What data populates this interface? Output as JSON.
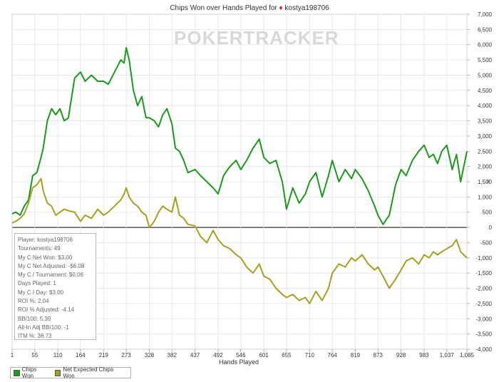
{
  "chart_data": {
    "type": "line",
    "title": "Chips Won over Hands Played for",
    "player_name": "kostya198706",
    "xlabel": "Hands Played",
    "ylabel": "",
    "xlim": [
      1,
      1085
    ],
    "ylim": [
      -4000,
      7000
    ],
    "x_ticks": [
      1,
      55,
      110,
      164,
      219,
      273,
      328,
      382,
      437,
      492,
      546,
      601,
      655,
      710,
      764,
      819,
      873,
      928,
      983,
      1037,
      1085
    ],
    "x_tick_labels": [
      "1",
      "55",
      "110",
      "164",
      "219",
      "273",
      "328",
      "382",
      "437",
      "492",
      "546",
      "601",
      "655",
      "710",
      "764",
      "819",
      "873",
      "928",
      "983",
      "1,037",
      "1,085"
    ],
    "y_ticks": [
      -4000,
      -3500,
      -3000,
      -2500,
      -2000,
      -1500,
      -1000,
      -500,
      0,
      500,
      1000,
      1500,
      2000,
      2500,
      3000,
      3500,
      4000,
      4500,
      5000,
      5500,
      6000,
      6500,
      7000
    ],
    "y_tick_labels": [
      "-4,000",
      "-3,500",
      "-3,000",
      "-2,500",
      "-2,000",
      "-1,500",
      "-1,000",
      "-500",
      "0",
      "500",
      "1,000",
      "1,500",
      "2,000",
      "2,500",
      "3,000",
      "3,500",
      "4,000",
      "4,500",
      "5,000",
      "5,500",
      "6,000",
      "6,500",
      "7,000"
    ],
    "grid": true,
    "legend_position": "bottom-left",
    "series": [
      {
        "name": "Chips Won",
        "color": "#1a9a1a",
        "x": [
          1,
          10,
          20,
          30,
          40,
          50,
          60,
          70,
          75,
          85,
          95,
          105,
          115,
          125,
          135,
          150,
          164,
          175,
          190,
          205,
          219,
          230,
          245,
          260,
          268,
          273,
          280,
          290,
          300,
          310,
          320,
          328,
          340,
          350,
          360,
          370,
          382,
          390,
          400,
          410,
          420,
          437,
          450,
          465,
          480,
          492,
          505,
          520,
          535,
          546,
          560,
          575,
          590,
          601,
          615,
          630,
          645,
          655,
          670,
          685,
          700,
          710,
          725,
          740,
          755,
          764,
          780,
          795,
          810,
          819,
          835,
          850,
          865,
          873,
          885,
          900,
          915,
          928,
          940,
          955,
          970,
          983,
          995,
          1005,
          1015,
          1025,
          1037,
          1050,
          1060,
          1070,
          1085
        ],
        "values": [
          450,
          500,
          400,
          700,
          900,
          1700,
          1800,
          2300,
          2600,
          3500,
          3900,
          3700,
          3900,
          3500,
          3600,
          4900,
          5100,
          4800,
          5000,
          4800,
          4800,
          4700,
          5100,
          5500,
          5400,
          5900,
          5500,
          4500,
          4000,
          4300,
          3600,
          3600,
          3500,
          3300,
          3700,
          3900,
          3400,
          2600,
          2500,
          2200,
          1800,
          1900,
          1700,
          1500,
          1300,
          1100,
          1700,
          2000,
          2200,
          1900,
          2200,
          2600,
          2900,
          2300,
          2100,
          2200,
          1500,
          600,
          1300,
          800,
          1100,
          1500,
          1800,
          1000,
          1700,
          2200,
          1500,
          1900,
          1600,
          1900,
          1600,
          1200,
          700,
          400,
          100,
          400,
          1400,
          1900,
          1700,
          2200,
          2500,
          2700,
          2300,
          2400,
          2100,
          2500,
          2700,
          1900,
          2400,
          1500,
          2500
        ]
      },
      {
        "name": "Net Expected Chips Won",
        "color": "#a6a021",
        "x": [
          1,
          10,
          20,
          30,
          40,
          50,
          60,
          70,
          75,
          85,
          95,
          105,
          115,
          125,
          135,
          150,
          164,
          175,
          190,
          205,
          219,
          230,
          245,
          260,
          268,
          273,
          280,
          290,
          300,
          310,
          320,
          328,
          340,
          350,
          360,
          370,
          382,
          390,
          400,
          410,
          420,
          437,
          450,
          465,
          480,
          492,
          505,
          520,
          535,
          546,
          560,
          575,
          590,
          601,
          615,
          630,
          645,
          655,
          670,
          685,
          700,
          710,
          725,
          740,
          755,
          764,
          780,
          795,
          810,
          819,
          835,
          850,
          865,
          873,
          885,
          900,
          915,
          928,
          940,
          955,
          970,
          983,
          995,
          1005,
          1015,
          1025,
          1037,
          1050,
          1060,
          1070,
          1085
        ],
        "values": [
          150,
          200,
          300,
          450,
          800,
          1300,
          1400,
          1600,
          1200,
          800,
          700,
          400,
          500,
          600,
          550,
          500,
          200,
          400,
          300,
          600,
          400,
          500,
          700,
          900,
          1100,
          1300,
          1000,
          800,
          700,
          500,
          400,
          0,
          200,
          500,
          700,
          600,
          500,
          1000,
          400,
          300,
          100,
          50,
          -300,
          -500,
          -100,
          -400,
          -600,
          -700,
          -900,
          -1000,
          -1300,
          -1500,
          -1200,
          -1600,
          -1700,
          -2000,
          -2200,
          -2300,
          -2200,
          -2400,
          -2300,
          -2500,
          -2100,
          -2400,
          -2000,
          -1500,
          -1200,
          -1300,
          -1000,
          -1100,
          -900,
          -1200,
          -1400,
          -1300,
          -1600,
          -2000,
          -1700,
          -1400,
          -1100,
          -1000,
          -1200,
          -900,
          -1000,
          -800,
          -900,
          -800,
          -700,
          -600,
          -400,
          -800,
          -1000
        ]
      }
    ]
  },
  "stats": [
    "Player: kostya198706",
    "Tournaments: 49",
    "My C Net Won: $3.00",
    "My C Net Adjusted: -$6.08",
    "My C / Tournament: $0.06",
    "Days Played: 1",
    "My C / Day: $3.00",
    "ROI %: 2.04",
    "ROI % Adjusted: -4.14",
    "BB/100: 5.39",
    "All-In Adj BB/100: -1",
    "ITM %: 36.73"
  ],
  "legend": {
    "items": [
      "Chips Won",
      "Net Expected Chips Won"
    ],
    "colors": [
      "#1a9a1a",
      "#a6a021"
    ]
  },
  "watermark": "POKERTRACKER",
  "right_marker": "#"
}
